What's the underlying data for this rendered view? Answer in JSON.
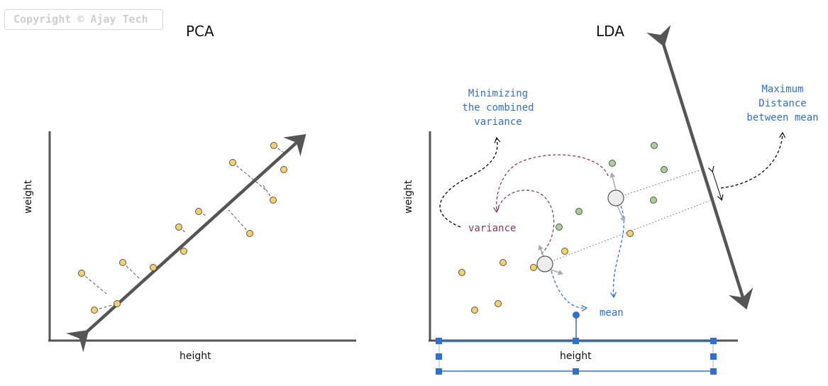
{
  "copyright": "Copyright © Ajay Tech",
  "pca": {
    "title": "PCA",
    "xlabel": "height",
    "ylabel": "weight"
  },
  "lda": {
    "title": "LDA",
    "xlabel": "height",
    "ylabel": "weight",
    "annotation_minimizing": [
      "Minimizing",
      "the combined",
      "variance"
    ],
    "annotation_maximum": [
      "Maximum",
      "Distance",
      "between mean"
    ],
    "label_variance": "variance",
    "label_mean": "mean"
  },
  "colors": {
    "point_yellow": "#f6d168",
    "point_green": "#a9cf98",
    "axis": "#555555",
    "blue": "#2f6fd6",
    "maroon": "#8a3b5e"
  }
}
